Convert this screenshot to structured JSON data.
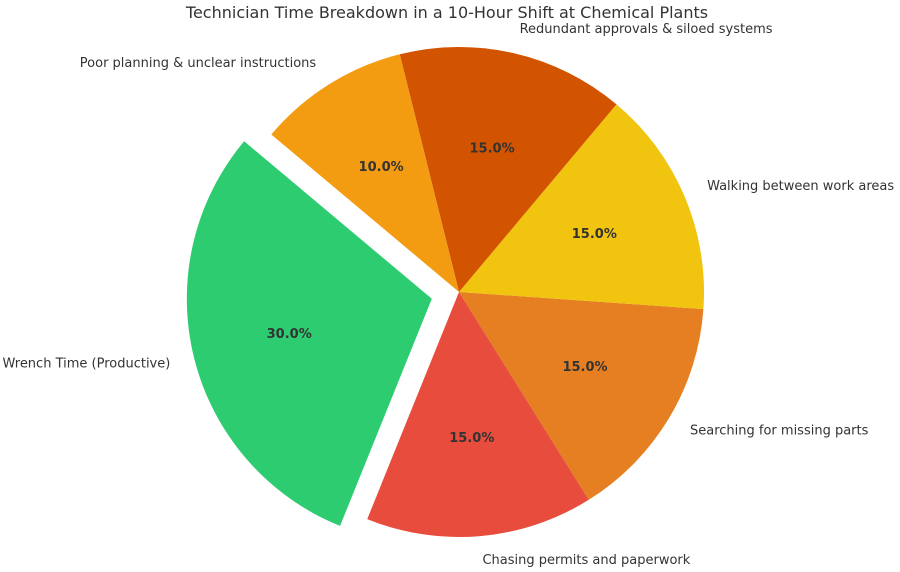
{
  "chart_data": {
    "type": "pie",
    "title": "Technician Time Breakdown in a 10-Hour Shift at Chemical Plants",
    "categories": [
      "Wrench Time (Productive)",
      "Chasing permits and paperwork",
      "Searching for missing parts",
      "Walking between work areas",
      "Redundant approvals & siloed systems",
      "Poor planning & unclear instructions"
    ],
    "values": [
      30,
      15,
      15,
      15,
      15,
      10
    ],
    "value_labels": [
      "30.0%",
      "15.0%",
      "15.0%",
      "15.0%",
      "15.0%",
      "10.0%"
    ],
    "colors": [
      "#2ecc71",
      "#e74c3c",
      "#e67e22",
      "#f1c40f",
      "#d35400",
      "#f39c12"
    ],
    "exploded": [
      "Wrench Time (Productive)"
    ],
    "start_angle_deg": 140,
    "direction": "counterclockwise"
  }
}
